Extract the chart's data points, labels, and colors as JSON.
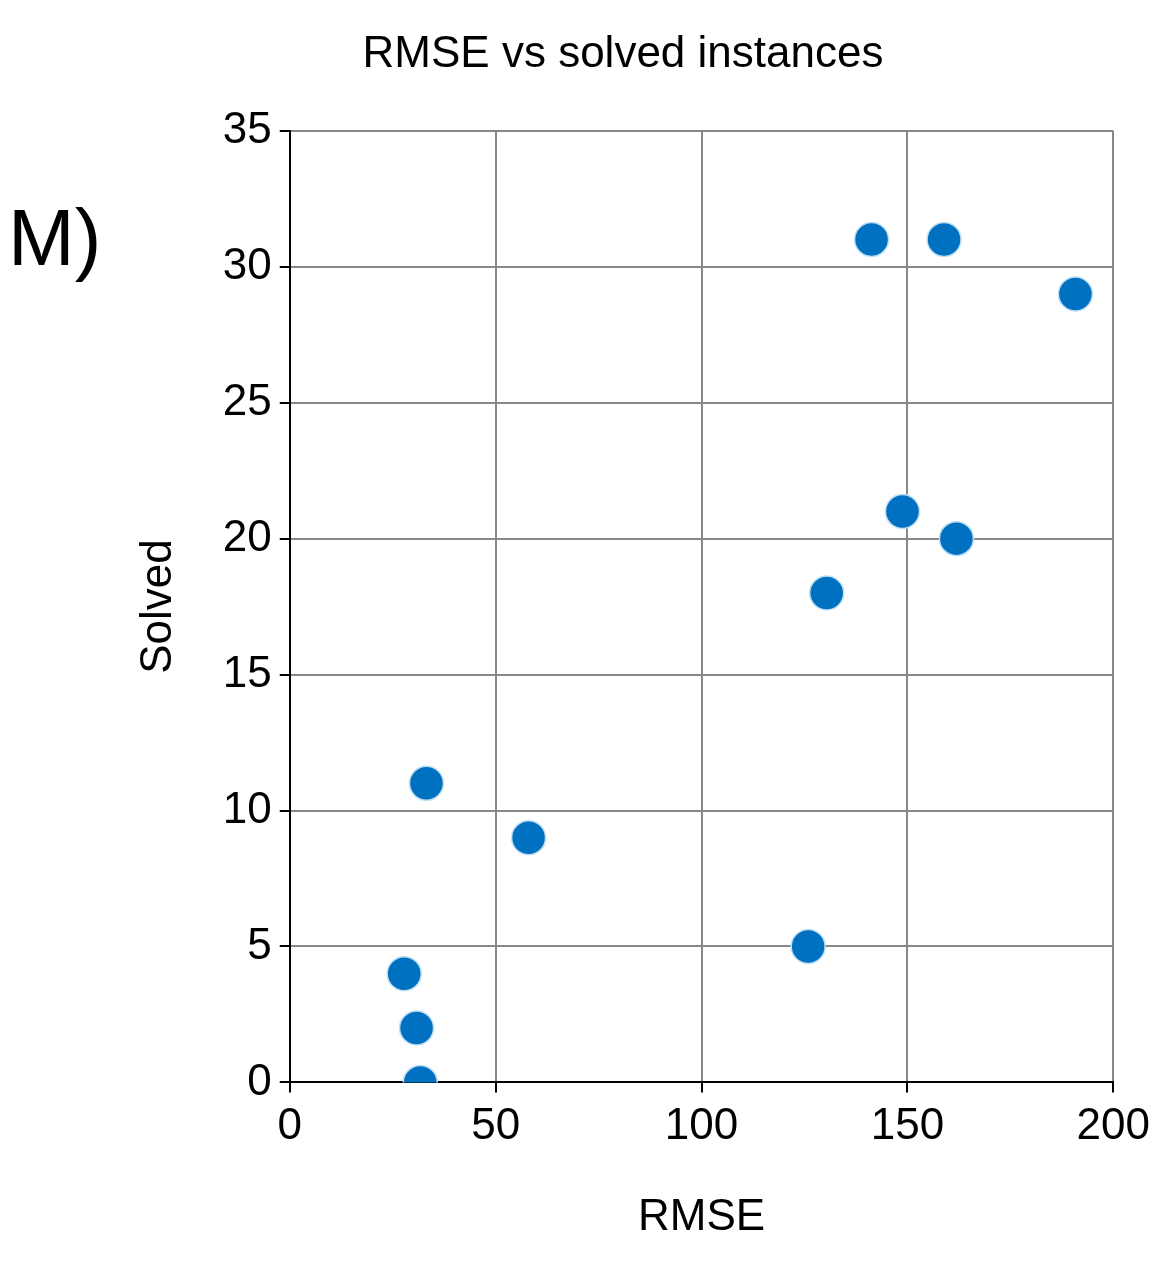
{
  "chart_data": {
    "type": "scatter",
    "title": "RMSE vs solved instances",
    "xlabel": "RMSE",
    "ylabel": "Solved",
    "annotations": [
      "M)"
    ],
    "x": [
      141.3,
      158.9,
      190.8,
      148.8,
      161.9,
      130.4,
      33.2,
      58.0,
      125.9,
      27.8,
      30.8,
      31.7
    ],
    "series": [
      {
        "color": "#0070c0",
        "values": [
          31,
          31,
          29,
          21,
          20,
          18,
          11,
          9,
          5,
          4,
          2,
          0
        ]
      }
    ],
    "xlim": [
      0,
      200
    ],
    "xticks": [
      0,
      50,
      100,
      150,
      200
    ],
    "ylim": [
      0,
      35
    ],
    "yticks": [
      0,
      5,
      10,
      15,
      20,
      25,
      30,
      35
    ],
    "grid": true,
    "legend": false,
    "marker": "circle"
  }
}
